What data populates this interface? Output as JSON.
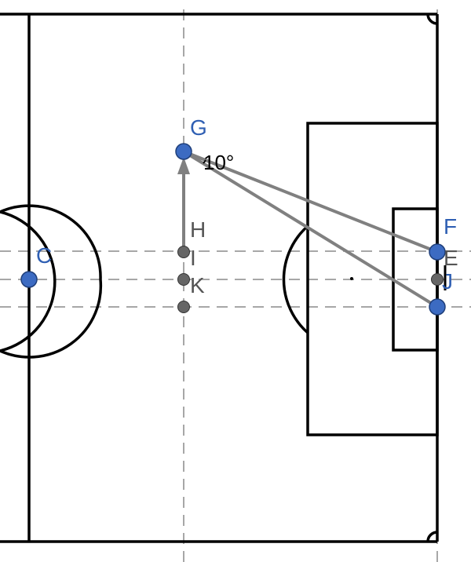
{
  "colors": {
    "field_line": "#000000",
    "guide_line": "#8a8a8a",
    "ray": "#808080",
    "point_blue": "#3c6bc2",
    "point_gray": "#666666",
    "label_blue": "#2f5fb3",
    "label_gray": "#555555"
  },
  "points": {
    "C": {
      "label": "C"
    },
    "G": {
      "label": "G"
    },
    "H": {
      "label": "H"
    },
    "I": {
      "label": "I"
    },
    "K": {
      "label": "K"
    },
    "F": {
      "label": "F"
    },
    "E": {
      "label": "E"
    },
    "J": {
      "label": "J"
    }
  },
  "angle": {
    "label": "10°"
  }
}
